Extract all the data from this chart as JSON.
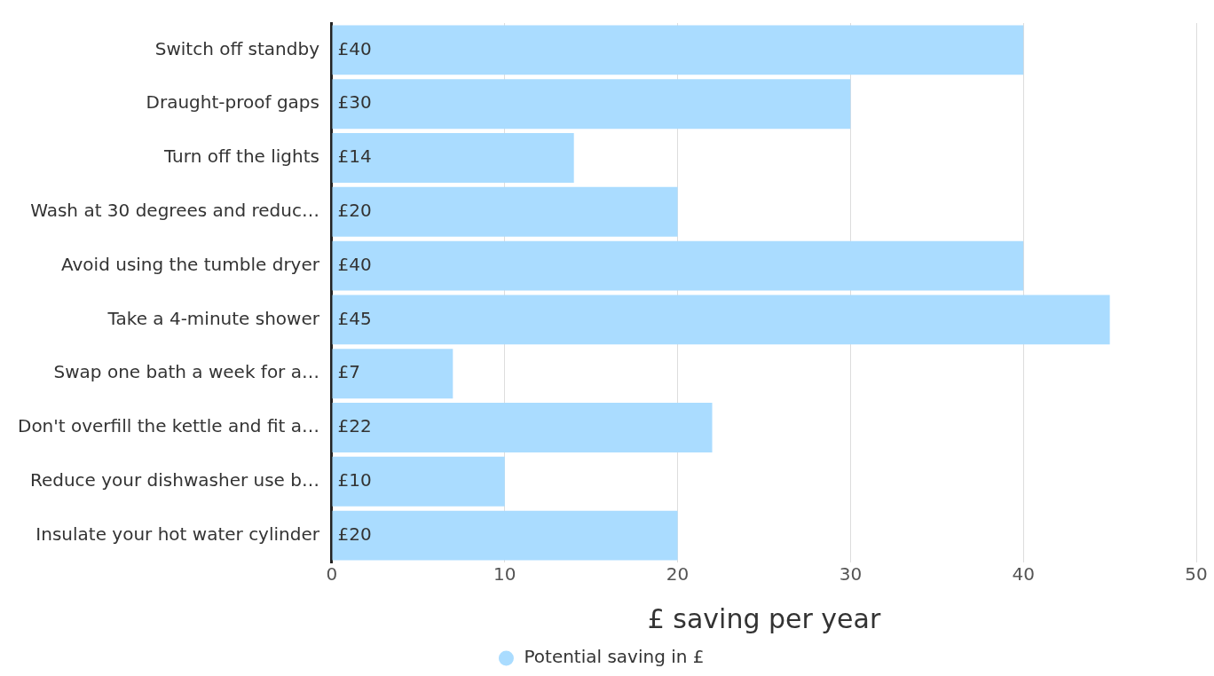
{
  "chart_data": {
    "type": "bar",
    "orientation": "horizontal",
    "xlabel": "£ saving per year",
    "categories": [
      "Switch off standby",
      "Draught-proof gaps",
      "Turn off the lights",
      "Wash at 30 degrees and reduc…",
      "Avoid using the tumble dryer",
      "Take a 4-minute shower",
      "Swap one bath a week for a…",
      "Don't overfill the kettle and fit a…",
      "Reduce your dishwasher use b…",
      "Insulate your hot water cylinder"
    ],
    "series": [
      {
        "name": "Potential saving in £",
        "color": "#aadcff",
        "values": [
          40,
          30,
          14,
          20,
          40,
          45,
          7,
          22,
          10,
          20
        ],
        "value_labels": [
          "£40",
          "£30",
          "£14",
          "£20",
          "£40",
          "£45",
          "£7",
          "£22",
          "£10",
          "£20"
        ]
      }
    ],
    "xlim": [
      0,
      50
    ],
    "xticks": [
      0,
      10,
      20,
      30,
      40,
      50
    ],
    "grid": "x",
    "legend": "bottom"
  }
}
